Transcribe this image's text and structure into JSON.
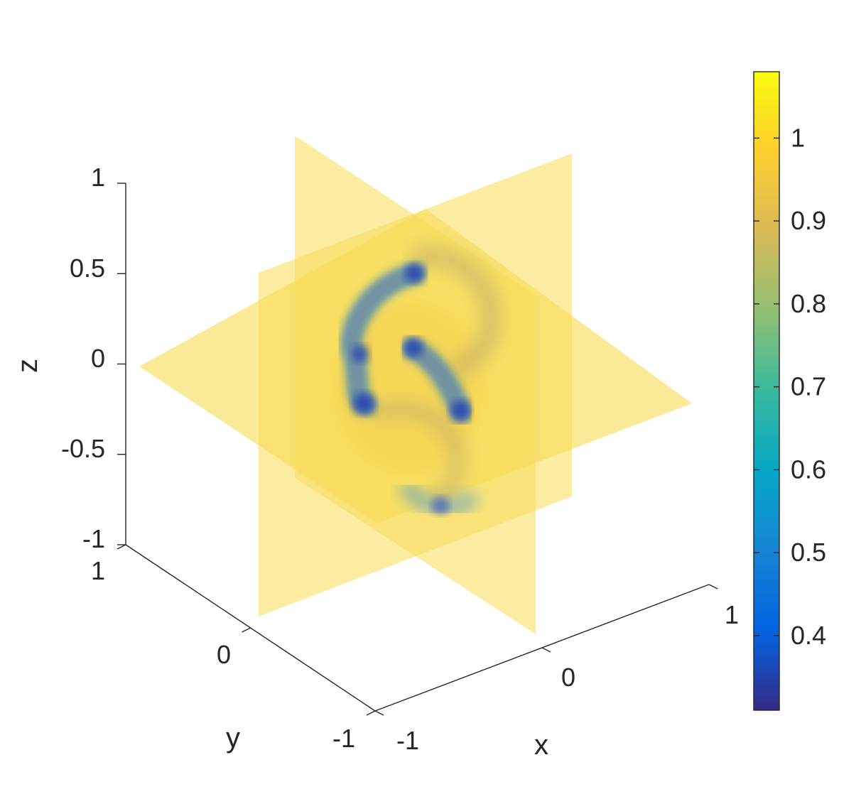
{
  "chart_data": {
    "type": "volume-slice",
    "title": "",
    "axes": {
      "x": {
        "label": "x",
        "ticks": [
          "-1",
          "0",
          "1"
        ],
        "range": [
          -1,
          1
        ]
      },
      "y": {
        "label": "y",
        "ticks": [
          "-1",
          "0",
          "1"
        ],
        "range": [
          -1,
          1
        ]
      },
      "z": {
        "label": "z",
        "ticks": [
          "-1",
          "-0.5",
          "0",
          "0.5",
          "1"
        ],
        "range": [
          -1,
          1
        ]
      }
    },
    "slices": {
      "x": [
        0
      ],
      "y": [
        0
      ],
      "z": [
        0
      ]
    },
    "colorbar": {
      "colormap": "parula",
      "range": [
        0.31,
        1.08
      ],
      "ticks": [
        "0.4",
        "0.5",
        "0.6",
        "0.7",
        "0.8",
        "0.9",
        "1"
      ],
      "colors": [
        "#352a87",
        "#0363e1",
        "#1485d4",
        "#06a7c6",
        "#38b99e",
        "#92bf73",
        "#d9ba56",
        "#fcce2e",
        "#f9fb0e"
      ]
    },
    "plane_color": "#f7d94a",
    "grid": false
  }
}
